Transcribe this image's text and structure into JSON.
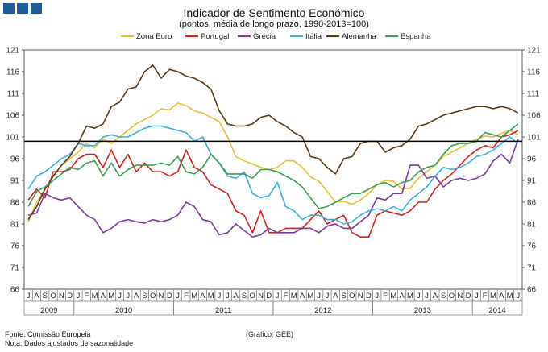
{
  "chart_data": {
    "type": "line",
    "title": "Indicador de Sentimento Económico",
    "subtitle": "(pontos, média de longo prazo, 1990-2013=100)",
    "x": [
      "2009-07",
      "2009-08",
      "2009-09",
      "2009-10",
      "2009-11",
      "2009-12",
      "2010-01",
      "2010-02",
      "2010-03",
      "2010-04",
      "2010-05",
      "2010-06",
      "2010-07",
      "2010-08",
      "2010-09",
      "2010-10",
      "2010-11",
      "2010-12",
      "2011-01",
      "2011-02",
      "2011-03",
      "2011-04",
      "2011-05",
      "2011-06",
      "2011-07",
      "2011-08",
      "2011-09",
      "2011-10",
      "2011-11",
      "2011-12",
      "2012-01",
      "2012-02",
      "2012-03",
      "2012-04",
      "2012-05",
      "2012-06",
      "2012-07",
      "2012-08",
      "2012-09",
      "2012-10",
      "2012-11",
      "2012-12",
      "2013-01",
      "2013-02",
      "2013-03",
      "2013-04",
      "2013-05",
      "2013-06",
      "2013-07",
      "2013-08",
      "2013-09",
      "2013-10",
      "2013-11",
      "2013-12",
      "2014-01",
      "2014-02",
      "2014-03",
      "2014-04",
      "2014-05",
      "2014-06"
    ],
    "month_ticks": [
      "J",
      "A",
      "S",
      "O",
      "N",
      "D",
      "J",
      "F",
      "M",
      "A",
      "M",
      "J",
      "J",
      "A",
      "S",
      "O",
      "N",
      "D",
      "J",
      "F",
      "M",
      "A",
      "M",
      "J",
      "J",
      "A",
      "S",
      "O",
      "N",
      "D",
      "J",
      "F",
      "M",
      "A",
      "M",
      "J",
      "J",
      "A",
      "S",
      "O",
      "N",
      "D",
      "J",
      "F",
      "M",
      "A",
      "M",
      "J",
      "J",
      "A",
      "S",
      "O",
      "N",
      "D",
      "J",
      "F",
      "M",
      "A",
      "M",
      "J"
    ],
    "year_labels": [
      {
        "label": "2009",
        "start": 0,
        "end": 6
      },
      {
        "label": "2010",
        "start": 6,
        "end": 18
      },
      {
        "label": "2011",
        "start": 18,
        "end": 30
      },
      {
        "label": "2012",
        "start": 30,
        "end": 42
      },
      {
        "label": "2013",
        "start": 42,
        "end": 54
      },
      {
        "label": "2014",
        "start": 54,
        "end": 60
      }
    ],
    "ylim": [
      66,
      121
    ],
    "yticks": [
      66,
      71,
      76,
      81,
      86,
      91,
      96,
      101,
      106,
      111,
      116,
      121
    ],
    "reference_line": 100,
    "legend_position": "top",
    "series": [
      {
        "name": "Zona Euro",
        "color": "#e8c030",
        "values": [
          81.5,
          86,
          89,
          92,
          94.5,
          96,
          97.5,
          99.5,
          98.5,
          100.5,
          99.5,
          101,
          102.5,
          104,
          105,
          106,
          107.5,
          107.2,
          108.8,
          108.2,
          107,
          106.5,
          105.5,
          104.5,
          101,
          96.5,
          95.5,
          94.8,
          94,
          93.5,
          94,
          95.5,
          95.5,
          94,
          91.8,
          90.8,
          88.5,
          86,
          86.2,
          85.5,
          86.5,
          88,
          90,
          91,
          90.8,
          89,
          89.2,
          91.5,
          93,
          94.5,
          96.5,
          97.5,
          98.5,
          99.5,
          100.5,
          101.2,
          101,
          101.8,
          102.5,
          101.5
        ]
      },
      {
        "name": "Portugal",
        "color": "#d42020",
        "values": [
          86.5,
          89,
          87,
          93,
          93,
          93.5,
          96,
          97,
          97,
          94,
          98,
          94,
          97,
          93,
          95,
          93,
          93,
          92,
          93,
          98,
          94,
          93,
          90,
          89,
          88,
          84,
          83,
          79,
          84,
          79,
          79,
          80,
          80,
          80,
          82,
          84,
          81,
          82,
          83,
          79,
          78,
          78,
          83,
          84,
          83.5,
          83,
          84,
          86,
          86,
          89,
          91,
          92.5,
          94.5,
          96.5,
          98,
          99,
          98.5,
          101,
          101.5,
          102.5
        ]
      },
      {
        "name": "Grécia",
        "color": "#7a3a9e",
        "values": [
          83,
          83.5,
          88,
          87,
          86.5,
          87,
          85,
          83,
          82,
          79,
          80,
          81.5,
          82,
          81.5,
          81.2,
          82,
          81.5,
          82,
          83,
          86,
          85,
          82,
          81.5,
          78.5,
          79,
          81,
          79.5,
          78,
          78.5,
          80,
          79,
          79,
          79,
          80,
          80,
          79,
          80.5,
          81,
          80,
          80,
          81.5,
          83,
          87,
          86.5,
          88,
          88,
          94.5,
          94.5,
          91.5,
          92,
          89.5,
          91,
          91.5,
          91,
          91.5,
          92.5,
          95.5,
          97,
          95,
          100.5
        ]
      },
      {
        "name": "Itália",
        "color": "#3aaedc",
        "values": [
          89,
          92,
          93,
          94.5,
          96,
          97,
          99.5,
          99,
          99,
          101,
          101.5,
          101,
          101,
          102,
          103,
          103.5,
          103.5,
          103,
          102.5,
          102,
          100,
          101,
          97,
          95,
          92,
          91.5,
          93,
          88,
          87,
          87.5,
          90.5,
          85,
          84,
          82,
          83,
          83,
          82,
          82,
          81,
          81.5,
          83,
          84,
          84.5,
          84,
          85,
          84,
          86.5,
          88,
          89.5,
          92,
          94,
          93.5,
          94,
          95,
          96.5,
          97,
          98,
          99.5,
          101,
          99.5
        ]
      },
      {
        "name": "Alemanha",
        "color": "#5a3a15",
        "values": [
          82,
          85,
          89,
          92,
          94.5,
          96.5,
          99.5,
          103.5,
          103,
          104,
          108,
          109,
          112,
          112.5,
          116,
          117.5,
          114.5,
          116.5,
          116,
          115,
          114.5,
          113.5,
          112,
          107,
          104,
          103.5,
          103.5,
          104,
          105.5,
          106,
          104.5,
          103.5,
          102,
          101,
          96.5,
          96,
          94,
          92.5,
          96,
          96.5,
          99.5,
          100,
          100,
          97.5,
          98.5,
          99,
          100.5,
          103.5,
          104,
          105,
          106,
          106.5,
          107,
          107.5,
          108,
          108,
          107.5,
          108,
          107.5,
          106.5
        ]
      },
      {
        "name": "Espanha",
        "color": "#3aa050",
        "values": [
          85,
          88.5,
          89.5,
          91,
          92.5,
          94,
          93.5,
          95,
          95.5,
          92,
          95,
          92,
          93.5,
          94.5,
          94.5,
          94.5,
          95,
          94.5,
          96.5,
          93,
          92.5,
          94,
          97,
          95,
          92.5,
          92.5,
          92.5,
          91.5,
          93.5,
          93.5,
          93,
          92,
          91,
          89.5,
          87,
          84.5,
          85,
          86,
          87,
          88,
          88,
          89,
          90,
          90.5,
          89.5,
          90.5,
          91,
          93,
          94,
          94.5,
          97,
          99,
          99.5,
          99.5,
          100,
          102,
          101.5,
          101,
          102.5,
          104
        ]
      }
    ]
  },
  "footer": {
    "source": "Fonte: Comissão Europeia",
    "note": "Nota: Dados ajustados de sazonalidade",
    "credit": "(Gráfico: GEE)"
  }
}
